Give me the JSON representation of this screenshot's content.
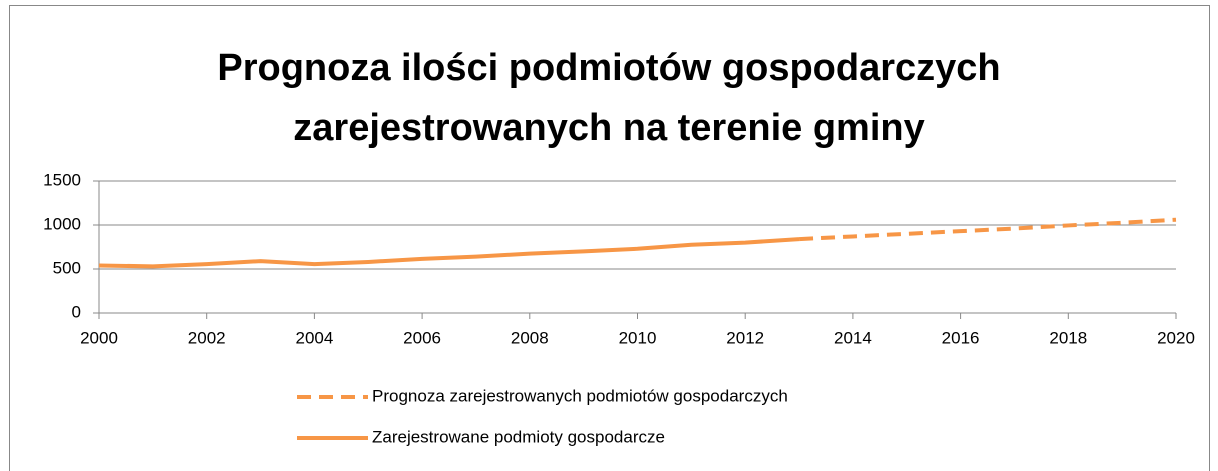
{
  "chart_data": {
    "type": "line",
    "title": [
      "Prognoza ilości podmiotów gospodarczych",
      "zarejestrowanych na terenie gminy"
    ],
    "x": [
      2000,
      2001,
      2002,
      2003,
      2004,
      2005,
      2006,
      2007,
      2008,
      2009,
      2010,
      2011,
      2012,
      2013,
      2014,
      2015,
      2016,
      2017,
      2018,
      2019,
      2020
    ],
    "series": [
      {
        "name": "Prognoza zarejestrowanych podmiotów gospodarczych",
        "color": "#f79646",
        "dashed": true,
        "values": [
          null,
          null,
          null,
          null,
          null,
          null,
          null,
          null,
          null,
          null,
          null,
          null,
          null,
          840,
          870,
          900,
          930,
          960,
          995,
          1025,
          1060
        ]
      },
      {
        "name": "Zarejestrowane podmioty gospodarcze",
        "color": "#f79646",
        "dashed": false,
        "values": [
          540,
          530,
          555,
          590,
          555,
          580,
          615,
          640,
          675,
          700,
          730,
          775,
          800,
          840,
          null,
          null,
          null,
          null,
          null,
          null,
          null
        ]
      }
    ],
    "xlim": [
      2000,
      2020
    ],
    "xticks": [
      2000,
      2002,
      2004,
      2006,
      2008,
      2010,
      2012,
      2014,
      2016,
      2018,
      2020
    ],
    "ylim": [
      0,
      1500
    ],
    "yticks": [
      0,
      500,
      1000,
      1500
    ],
    "grid": true,
    "legend": "bottom"
  }
}
